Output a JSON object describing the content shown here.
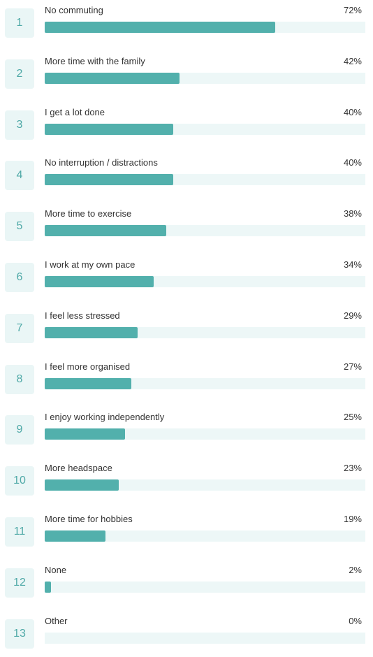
{
  "chart_data": {
    "type": "bar",
    "orientation": "horizontal",
    "value_unit": "%",
    "xlim": [
      0,
      100
    ],
    "colors": {
      "bar": "#52b0ac",
      "track": "#edf7f7",
      "rank_box": "#eaf6f6",
      "rank_text": "#4fa9a7"
    },
    "items": [
      {
        "rank": "1",
        "label": "No commuting",
        "value": 72,
        "value_label": "72%"
      },
      {
        "rank": "2",
        "label": "More time with the family",
        "value": 42,
        "value_label": "42%"
      },
      {
        "rank": "3",
        "label": "I get a lot done",
        "value": 40,
        "value_label": "40%"
      },
      {
        "rank": "4",
        "label": "No interruption / distractions",
        "value": 40,
        "value_label": "40%"
      },
      {
        "rank": "5",
        "label": "More time to exercise",
        "value": 38,
        "value_label": "38%"
      },
      {
        "rank": "6",
        "label": "I work at my own pace",
        "value": 34,
        "value_label": "34%"
      },
      {
        "rank": "7",
        "label": "I feel less stressed",
        "value": 29,
        "value_label": "29%"
      },
      {
        "rank": "8",
        "label": "I feel more organised",
        "value": 27,
        "value_label": "27%"
      },
      {
        "rank": "9",
        "label": "I enjoy working independently",
        "value": 25,
        "value_label": "25%"
      },
      {
        "rank": "10",
        "label": "More headspace",
        "value": 23,
        "value_label": "23%"
      },
      {
        "rank": "11",
        "label": "More time for hobbies",
        "value": 19,
        "value_label": "19%"
      },
      {
        "rank": "12",
        "label": "None",
        "value": 2,
        "value_label": "2%"
      },
      {
        "rank": "13",
        "label": "Other",
        "value": 0,
        "value_label": "0%"
      }
    ]
  }
}
